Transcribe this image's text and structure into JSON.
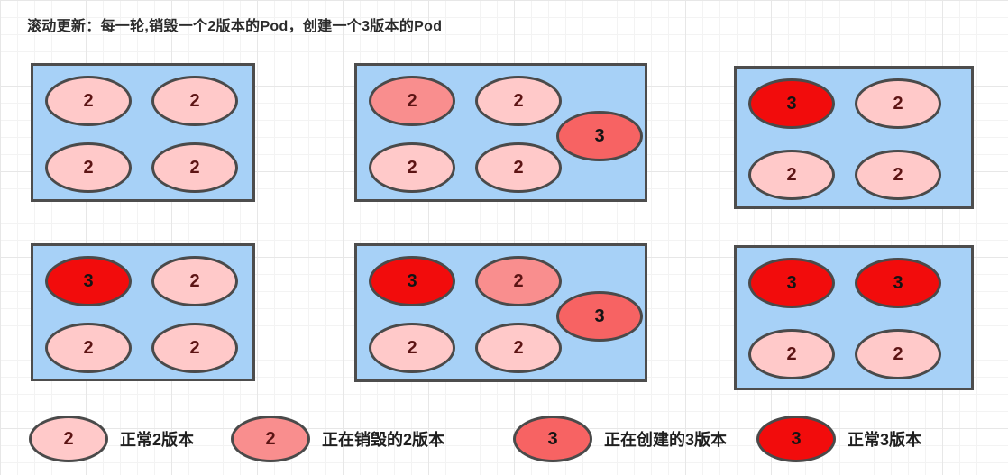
{
  "title": "滚动更新：每一轮,销毁一个2版本的Pod，创建一个3版本的Pod",
  "colors": {
    "box-fill": "#A7D1F7",
    "box-border": "#4D4D4D",
    "pod-border": "#4A4A4A",
    "normal-v2": "#FFC9C9",
    "destroying-v2": "#F98E8E",
    "creating-v3": "#F76363",
    "normal-v3": "#F20C0C",
    "v2-text": "#5C1414",
    "v3-text": "#141414",
    "title-text": "#2B2B2B",
    "legend-text": "#1F1F1F",
    "grid-minor": "#F3F3F3",
    "grid-major": "#E7E7E7"
  },
  "boxes": [
    {
      "pods": [
        {
          "label": "2",
          "status": "normal-v2"
        },
        {
          "label": "2",
          "status": "normal-v2"
        },
        {
          "label": "2",
          "status": "normal-v2"
        },
        {
          "label": "2",
          "status": "normal-v2"
        }
      ]
    },
    {
      "pods": [
        {
          "label": "2",
          "status": "destroying-v2"
        },
        {
          "label": "2",
          "status": "normal-v2"
        },
        {
          "label": "2",
          "status": "normal-v2"
        },
        {
          "label": "2",
          "status": "normal-v2"
        },
        {
          "label": "3",
          "status": "creating-v3"
        }
      ]
    },
    {
      "pods": [
        {
          "label": "3",
          "status": "normal-v3"
        },
        {
          "label": "2",
          "status": "normal-v2"
        },
        {
          "label": "2",
          "status": "normal-v2"
        },
        {
          "label": "2",
          "status": "normal-v2"
        }
      ]
    },
    {
      "pods": [
        {
          "label": "3",
          "status": "normal-v3"
        },
        {
          "label": "2",
          "status": "normal-v2"
        },
        {
          "label": "2",
          "status": "normal-v2"
        },
        {
          "label": "2",
          "status": "normal-v2"
        }
      ]
    },
    {
      "pods": [
        {
          "label": "3",
          "status": "normal-v3"
        },
        {
          "label": "2",
          "status": "destroying-v2"
        },
        {
          "label": "2",
          "status": "normal-v2"
        },
        {
          "label": "2",
          "status": "normal-v2"
        },
        {
          "label": "3",
          "status": "creating-v3"
        }
      ]
    },
    {
      "pods": [
        {
          "label": "3",
          "status": "normal-v3"
        },
        {
          "label": "3",
          "status": "normal-v3"
        },
        {
          "label": "2",
          "status": "normal-v2"
        },
        {
          "label": "2",
          "status": "normal-v2"
        }
      ]
    }
  ],
  "legend": [
    {
      "label": "2",
      "status": "normal-v2",
      "text": "正常2版本"
    },
    {
      "label": "2",
      "status": "destroying-v2",
      "text": "正在销毁的2版本"
    },
    {
      "label": "3",
      "status": "creating-v3",
      "text": "正在创建的3版本"
    },
    {
      "label": "3",
      "status": "normal-v3",
      "text": "正常3版本"
    }
  ]
}
